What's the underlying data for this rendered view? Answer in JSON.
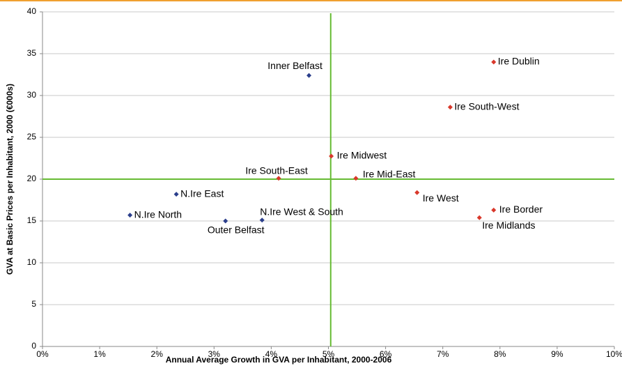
{
  "chart_data": {
    "type": "scatter",
    "x_label": "Annual Average Growth in GVA per Inhabitant, 2000-2006",
    "y_label": "GVA at Basic Prices per Inhabitant, 2000 (€000s)",
    "xlim": [
      0,
      10
    ],
    "ylim": [
      0,
      40
    ],
    "xticks": [
      {
        "value": 0,
        "label": "0%"
      },
      {
        "value": 1,
        "label": "1%"
      },
      {
        "value": 2,
        "label": "2%"
      },
      {
        "value": 3,
        "label": "3%"
      },
      {
        "value": 4,
        "label": "4%"
      },
      {
        "value": 5,
        "label": "5%"
      },
      {
        "value": 6,
        "label": "6%"
      },
      {
        "value": 7,
        "label": "7%"
      },
      {
        "value": 8,
        "label": "8%"
      },
      {
        "value": 9,
        "label": "9%"
      },
      {
        "value": 10,
        "label": "10%"
      }
    ],
    "yticks": [
      0,
      5,
      10,
      15,
      20,
      25,
      30,
      35,
      40
    ],
    "grid": true,
    "reference_lines": {
      "x": 5.04,
      "y": 20,
      "color": "#66bb33"
    },
    "series": [
      {
        "color": "#2b3f8c",
        "labels": [
          "Inner Belfast",
          "N.Ire East",
          "N.Ire North",
          "Outer Belfast",
          "N.Ire West & South"
        ],
        "x": [
          4.66,
          2.34,
          1.53,
          3.2,
          3.84
        ],
        "values": [
          32.4,
          18.2,
          15.7,
          15.0,
          15.1
        ]
      },
      {
        "color": "#d9382b",
        "labels": [
          "Ire Dublin",
          "Ire South-West",
          "Ire Midwest",
          "Ire South-East",
          "Ire Mid-East",
          "Ire West",
          "Ire Border",
          "Ire Midlands"
        ],
        "x": [
          7.89,
          7.13,
          5.05,
          4.13,
          5.48,
          6.55,
          7.89,
          7.64
        ],
        "values": [
          34.0,
          28.6,
          22.75,
          20.1,
          20.1,
          18.4,
          16.3,
          15.4
        ]
      }
    ]
  }
}
